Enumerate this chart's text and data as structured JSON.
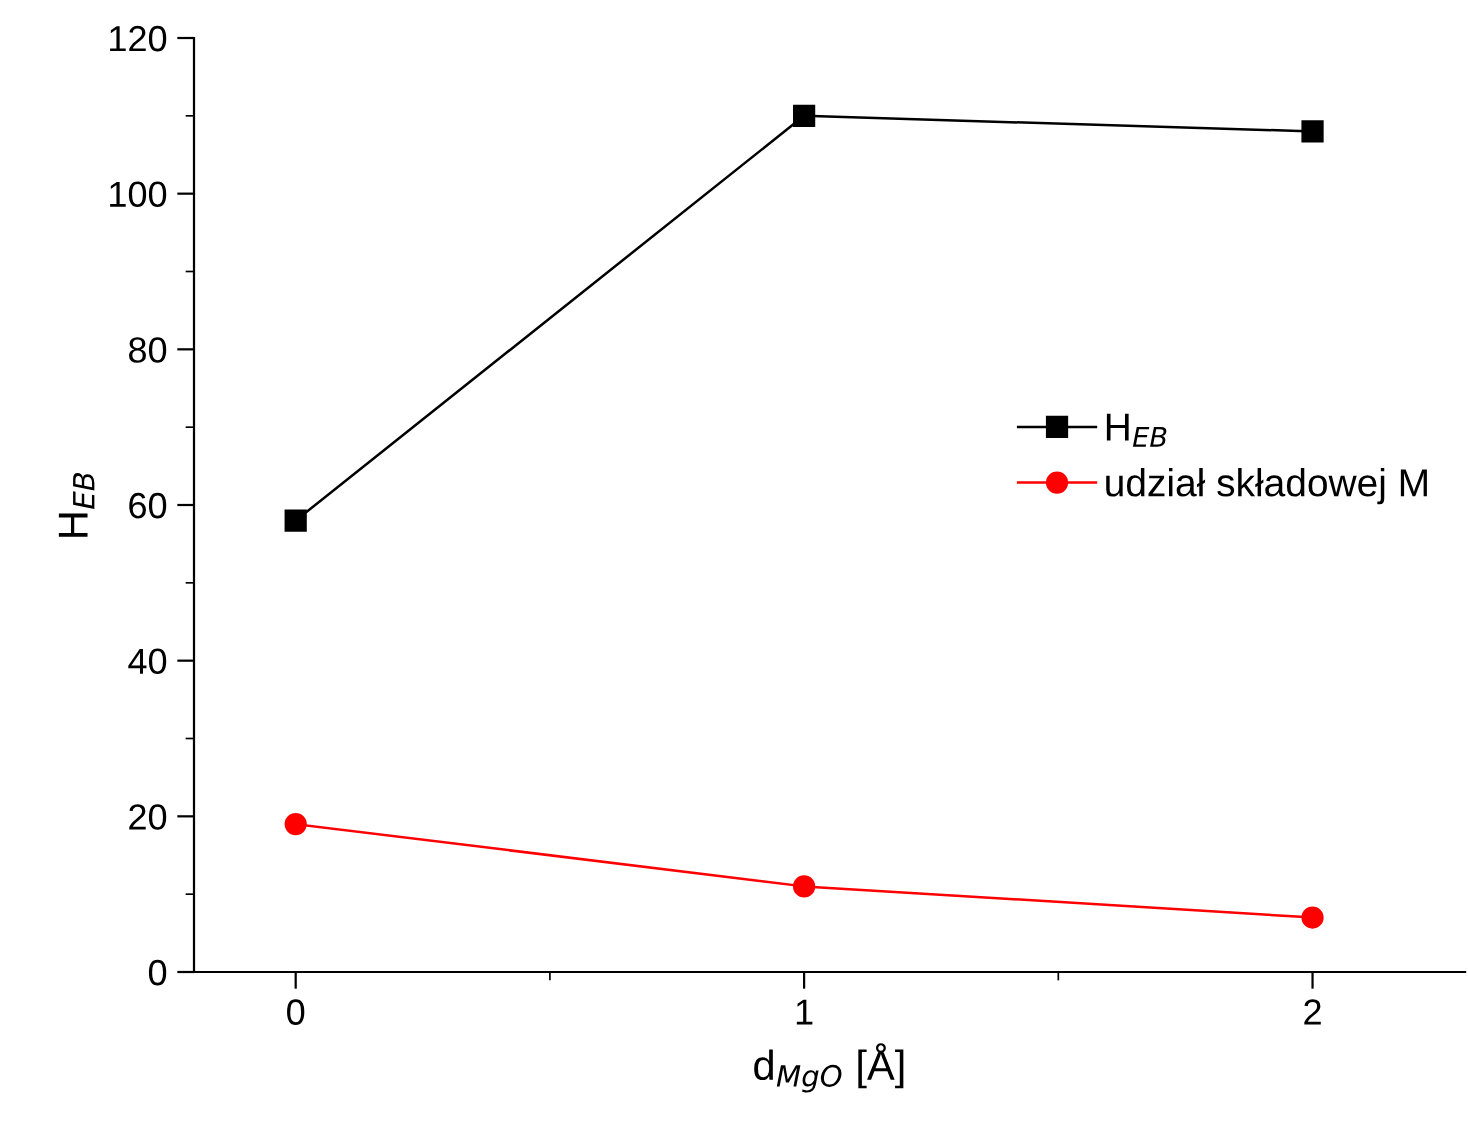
{
  "chart_data": {
    "type": "line",
    "xlabel": "d$_{MgO}$ [Å]",
    "ylabel": "H$_{EB}$",
    "x": [
      0,
      1,
      2
    ],
    "series": [
      {
        "name": "H$_{EB}$",
        "color": "#000000",
        "values": [
          58,
          110,
          108
        ],
        "marker": "square"
      },
      {
        "name": "udział składowej M",
        "color": "#ff0000",
        "values": [
          19,
          11,
          7
        ],
        "marker": "circle"
      }
    ],
    "xlim": [
      -0.2,
      2.3
    ],
    "ylim": [
      0,
      120
    ],
    "xticks": [
      0,
      1,
      2
    ],
    "yticks": [
      0,
      20,
      40,
      60,
      80,
      100,
      120
    ],
    "grid": false,
    "legend": "center right",
    "line_style": "solid"
  }
}
